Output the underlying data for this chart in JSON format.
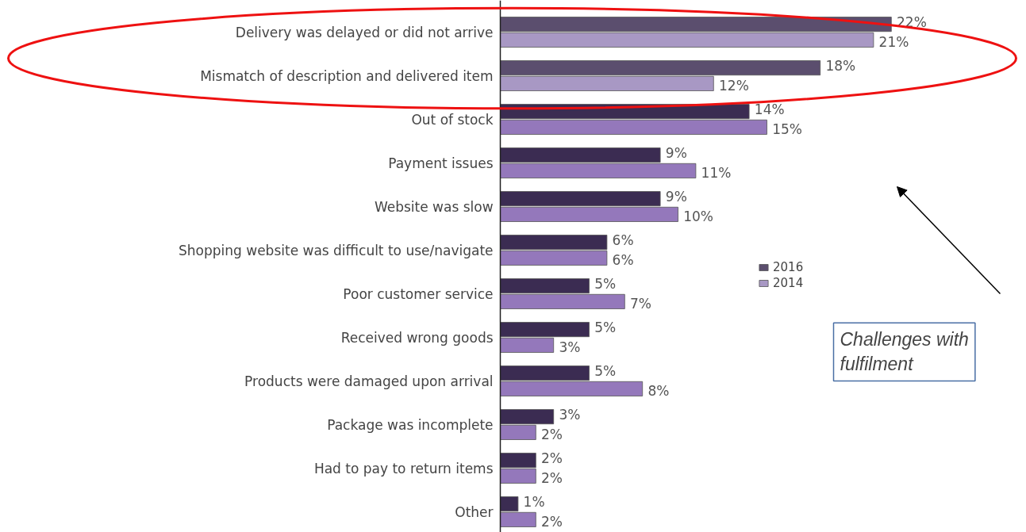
{
  "chart_data": {
    "type": "bar",
    "orientation": "horizontal",
    "legend": "right",
    "grid": false,
    "categories": [
      "Delivery was delayed or did not arrive",
      "Mismatch of description and delivered item",
      "Out of stock",
      "Payment issues",
      "Website was slow",
      "Shopping website was difficult to use/navigate",
      "Poor customer service",
      "Received wrong goods",
      "Products were damaged upon arrival",
      "Package was incomplete",
      "Had to pay to return items",
      "Other"
    ],
    "series": [
      {
        "name": "2016",
        "colors": [
          "#5b4e6e",
          "#5b4e6e",
          "#3b2c52",
          "#3b2c52",
          "#3b2c52",
          "#3b2c52",
          "#3b2c52",
          "#3b2c52",
          "#3b2c52",
          "#3b2c52",
          "#3b2c52",
          "#3b2c52"
        ],
        "values": [
          22,
          18,
          14,
          9,
          9,
          6,
          5,
          5,
          5,
          3,
          2,
          1
        ],
        "value_labels": [
          "22%",
          "18%",
          "14%",
          "9%",
          "9%",
          "6%",
          "5%",
          "5%",
          "5%",
          "3%",
          "2%",
          "1%"
        ]
      },
      {
        "name": "2014",
        "colors": [
          "#a898c4",
          "#a898c4",
          "#9478bb",
          "#9478bb",
          "#9478bb",
          "#9478bb",
          "#9478bb",
          "#9478bb",
          "#9478bb",
          "#9478bb",
          "#9478bb",
          "#9478bb"
        ],
        "values": [
          21,
          12,
          15,
          11,
          10,
          6,
          7,
          3,
          8,
          2,
          2,
          2
        ],
        "value_labels": [
          "21%",
          "12%",
          "15%",
          "11%",
          "10%",
          "6%",
          "7%",
          "3%",
          "8%",
          "2%",
          "2%",
          "2%"
        ]
      }
    ],
    "annotations": [
      "Challenges with fulfilment"
    ]
  }
}
